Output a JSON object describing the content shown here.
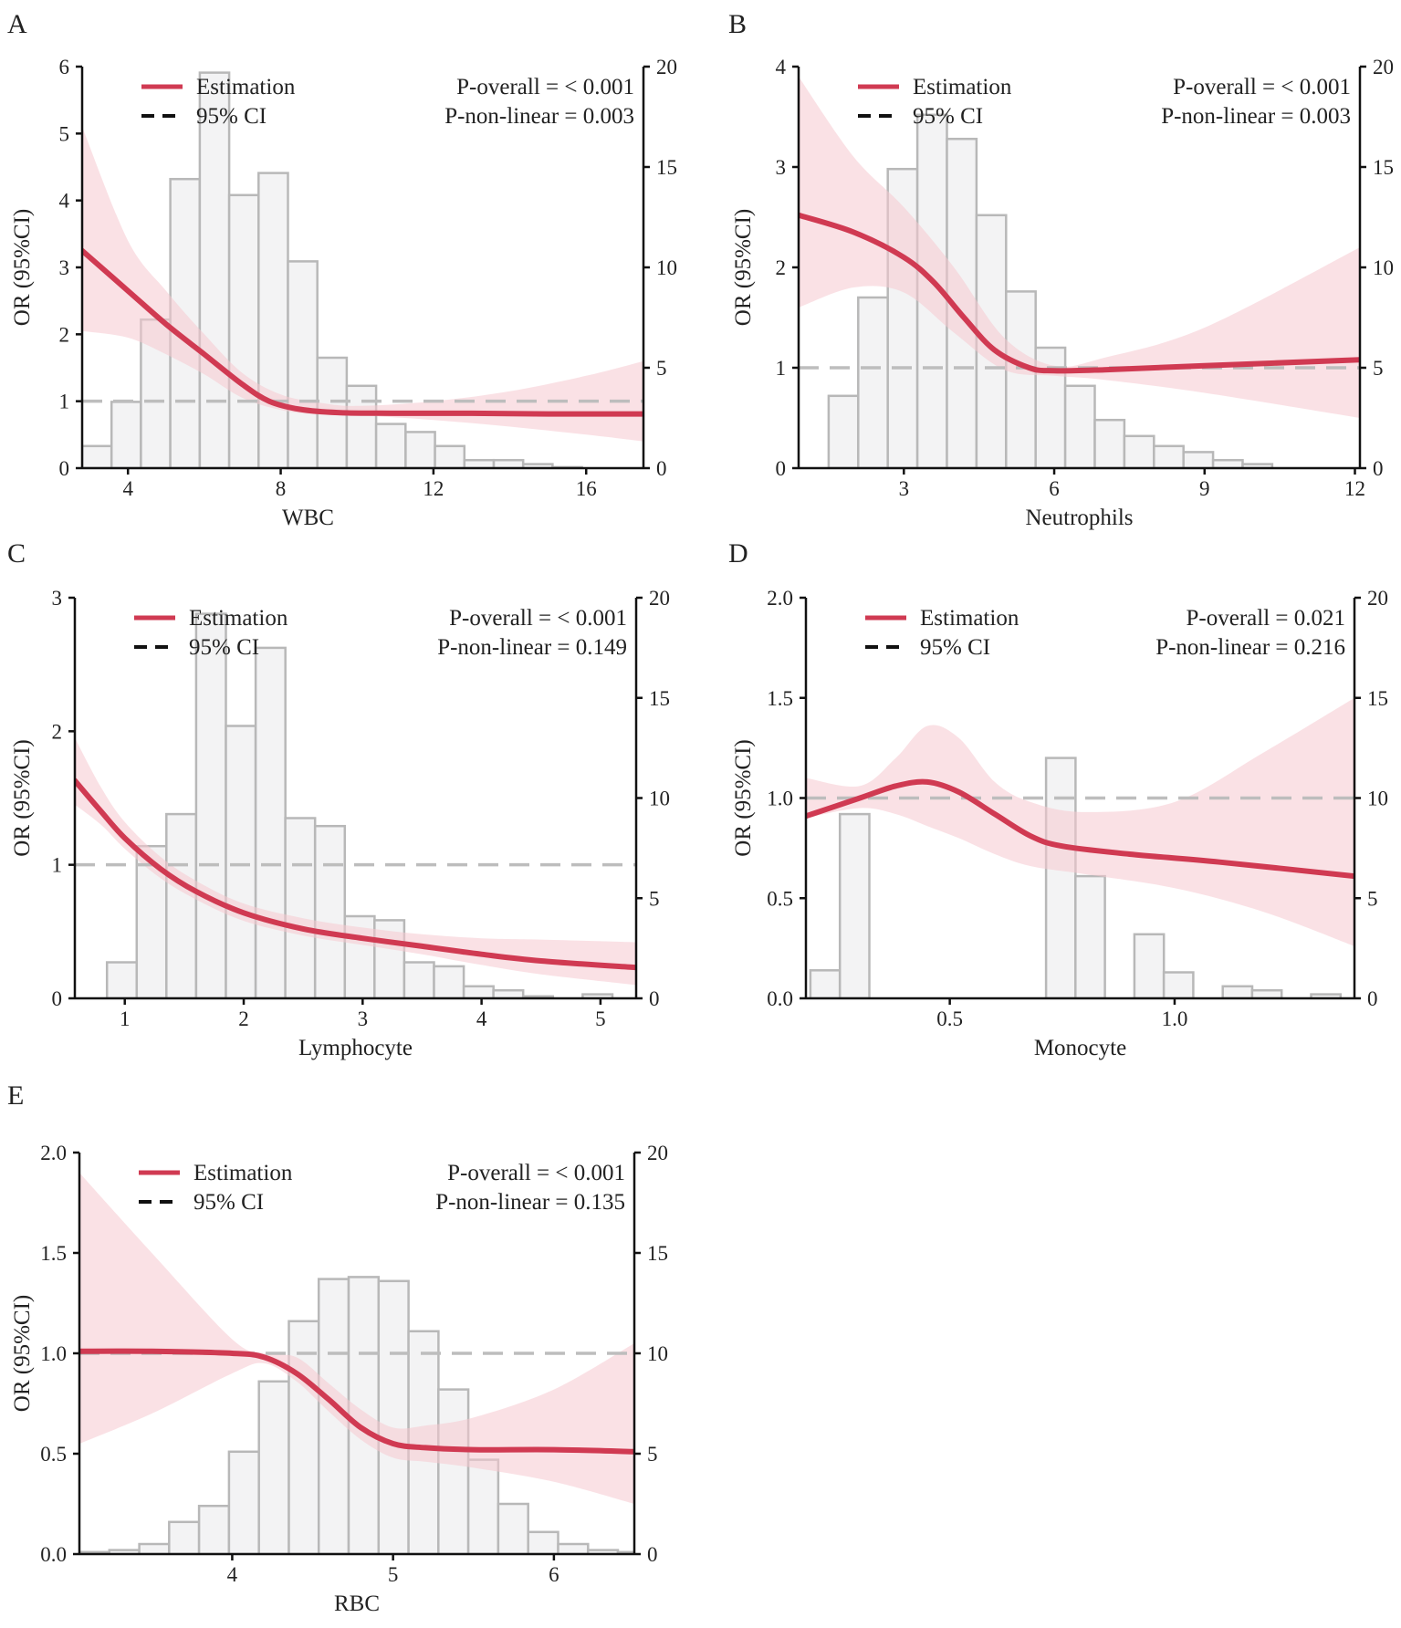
{
  "colors": {
    "estimation": "#d03a52",
    "ci_fill": "#f5c8cf",
    "hist_fill": "#f3f3f4",
    "hist_stroke": "#b8b8b8",
    "reference": "#bdbdbd",
    "axis": "#111111"
  },
  "chart_data": [
    {
      "panel": "A",
      "type": "line",
      "xlabel": "WBC",
      "ylabel": "OR (95%CI)",
      "legend": {
        "estimation": "Estimation",
        "ci": "95% CI"
      },
      "p_overall": "P-overall = < 0.001",
      "p_nonlinear": "P-non-linear = 0.003",
      "xlim": [
        2.8,
        17.5
      ],
      "ylim": [
        0,
        6
      ],
      "y2lim": [
        0,
        20
      ],
      "xticks": [
        4,
        8,
        12,
        16
      ],
      "xticklabels": [
        "4",
        "8",
        "12",
        "16"
      ],
      "yticks": [
        0,
        1,
        2,
        3,
        4,
        5,
        6
      ],
      "yticklabels": [
        "0",
        "1",
        "2",
        "3",
        "4",
        "5",
        "6"
      ],
      "y2ticks": [
        0,
        5,
        10,
        15,
        20
      ],
      "y2ticklabels": [
        "0",
        "5",
        "10",
        "15",
        "20"
      ],
      "reference": 1,
      "hist": {
        "start": 2.8,
        "width": 0.77,
        "counts": [
          1.1,
          3.3,
          7.4,
          14.4,
          19.7,
          13.6,
          14.7,
          10.3,
          5.5,
          4.1,
          2.2,
          1.8,
          1.1,
          0.4,
          0.4,
          0.2,
          0.05,
          0,
          0
        ]
      },
      "estimate": {
        "x": [
          2.8,
          4,
          5,
          6,
          7,
          7.7,
          8.5,
          9.5,
          11,
          13,
          15,
          17.5
        ],
        "y": [
          3.25,
          2.65,
          2.15,
          1.7,
          1.25,
          1.0,
          0.88,
          0.83,
          0.82,
          0.82,
          0.81,
          0.81
        ]
      },
      "ci": {
        "x": [
          2.8,
          4,
          5,
          6,
          7,
          8,
          9,
          10,
          12,
          14,
          16,
          17.5
        ],
        "lower": [
          2.05,
          1.95,
          1.7,
          1.4,
          1.05,
          0.87,
          0.8,
          0.79,
          0.72,
          0.62,
          0.5,
          0.4
        ],
        "upper": [
          5.1,
          3.4,
          2.65,
          2.0,
          1.42,
          1.1,
          0.98,
          0.93,
          1.0,
          1.15,
          1.38,
          1.6
        ]
      }
    },
    {
      "panel": "B",
      "type": "line",
      "xlabel": "Neutrophils",
      "ylabel": "OR (95%CI)",
      "legend": {
        "estimation": "Estimation",
        "ci": "95% CI"
      },
      "p_overall": "P-overall = < 0.001",
      "p_nonlinear": "P-non-linear = 0.003",
      "xlim": [
        0.9,
        12.1
      ],
      "ylim": [
        0,
        4
      ],
      "y2lim": [
        0,
        20
      ],
      "xticks": [
        3,
        6,
        9,
        12
      ],
      "xticklabels": [
        "3",
        "6",
        "9",
        "12"
      ],
      "yticks": [
        0,
        1,
        2,
        3,
        4
      ],
      "yticklabels": [
        "0",
        "1",
        "2",
        "3",
        "4"
      ],
      "y2ticks": [
        0,
        5,
        10,
        15,
        20
      ],
      "y2ticklabels": [
        "0",
        "5",
        "10",
        "15",
        "20"
      ],
      "reference": 1,
      "hist": {
        "start": 1.5,
        "width": 0.59,
        "counts": [
          3.6,
          8.5,
          14.9,
          17.6,
          16.4,
          12.6,
          8.8,
          6.0,
          4.1,
          2.4,
          1.6,
          1.1,
          0.8,
          0.4,
          0.2,
          0,
          0,
          0
        ]
      },
      "estimate": {
        "x": [
          0.9,
          2,
          3,
          3.6,
          4.2,
          4.8,
          5.5,
          6,
          7,
          9,
          12.1
        ],
        "y": [
          2.52,
          2.35,
          2.1,
          1.85,
          1.5,
          1.18,
          1.0,
          0.97,
          0.98,
          1.02,
          1.08
        ]
      },
      "ci": {
        "x": [
          0.9,
          2,
          3,
          4,
          5,
          6,
          7,
          9,
          12.1
        ],
        "lower": [
          1.6,
          1.8,
          1.75,
          1.35,
          0.98,
          0.92,
          0.88,
          0.75,
          0.5
        ],
        "upper": [
          3.9,
          3.1,
          2.6,
          2.0,
          1.3,
          1.02,
          1.1,
          1.4,
          2.2
        ]
      }
    },
    {
      "panel": "C",
      "type": "line",
      "xlabel": "Lymphocyte",
      "ylabel": "OR (95%CI)",
      "legend": {
        "estimation": "Estimation",
        "ci": "95% CI"
      },
      "p_overall": "P-overall = < 0.001",
      "p_nonlinear": "P-non-linear = 0.149",
      "xlim": [
        0.58,
        5.3
      ],
      "ylim": [
        0,
        3
      ],
      "y2lim": [
        0,
        20
      ],
      "xticks": [
        1,
        2,
        3,
        4,
        5
      ],
      "xticklabels": [
        "1",
        "2",
        "3",
        "4",
        "5"
      ],
      "yticks": [
        0,
        1,
        2,
        3
      ],
      "yticklabels": [
        "0",
        "1",
        "2",
        "3"
      ],
      "y2ticks": [
        0,
        5,
        10,
        15,
        20
      ],
      "y2ticklabels": [
        "0",
        "5",
        "10",
        "15",
        "20"
      ],
      "reference": 1,
      "hist": {
        "start": 0.85,
        "width": 0.25,
        "counts": [
          1.8,
          7.6,
          9.2,
          19.2,
          13.6,
          17.5,
          9.0,
          8.6,
          4.1,
          3.9,
          1.8,
          1.6,
          0.6,
          0.4,
          0.1,
          0,
          0.2,
          0,
          0
        ]
      },
      "estimate": {
        "x": [
          0.58,
          0.8,
          1.0,
          1.3,
          1.6,
          2.0,
          2.5,
          3,
          3.5,
          4,
          4.5,
          5.3
        ],
        "y": [
          1.63,
          1.4,
          1.2,
          0.97,
          0.8,
          0.64,
          0.52,
          0.45,
          0.39,
          0.33,
          0.28,
          0.23
        ]
      },
      "ci": {
        "x": [
          0.58,
          0.8,
          1.0,
          1.3,
          1.6,
          2.0,
          2.5,
          3,
          3.5,
          4,
          4.5,
          5.3
        ],
        "lower": [
          1.45,
          1.3,
          1.12,
          0.9,
          0.74,
          0.58,
          0.47,
          0.4,
          0.33,
          0.25,
          0.18,
          0.1
        ],
        "upper": [
          1.95,
          1.58,
          1.32,
          1.06,
          0.88,
          0.71,
          0.6,
          0.53,
          0.48,
          0.45,
          0.44,
          0.42
        ]
      }
    },
    {
      "panel": "D",
      "type": "line",
      "xlabel": "Monocyte",
      "ylabel": "OR (95%CI)",
      "legend": {
        "estimation": "Estimation",
        "ci": "95% CI"
      },
      "p_overall": "P-overall = 0.021",
      "p_nonlinear": "P-non-linear = 0.216",
      "xlim": [
        0.18,
        1.4
      ],
      "ylim": [
        0,
        2
      ],
      "y2lim": [
        0,
        20
      ],
      "xticks": [
        0.5,
        1.0
      ],
      "xticklabels": [
        "0.5",
        "1.0"
      ],
      "yticks": [
        0,
        0.5,
        1,
        1.5,
        2
      ],
      "yticklabels": [
        "0.0",
        "0.5",
        "1.0",
        "1.5",
        "2.0"
      ],
      "y2ticks": [
        0,
        5,
        10,
        15,
        20
      ],
      "y2ticklabels": [
        "0",
        "5",
        "10",
        "15",
        "20"
      ],
      "reference": 1,
      "hist": {
        "start": 0.19,
        "width": 0.0655,
        "counts": [
          1.4,
          9.2,
          0,
          0,
          0,
          0,
          0,
          0,
          12.0,
          6.1,
          0,
          3.2,
          1.3,
          0,
          0.6,
          0.4,
          0,
          0.2
        ]
      },
      "estimate": {
        "x": [
          0.18,
          0.3,
          0.38,
          0.45,
          0.52,
          0.6,
          0.68,
          0.75,
          0.9,
          1.1,
          1.4
        ],
        "y": [
          0.91,
          1.0,
          1.06,
          1.08,
          1.03,
          0.92,
          0.81,
          0.76,
          0.72,
          0.68,
          0.61
        ]
      },
      "ci": {
        "x": [
          0.18,
          0.3,
          0.38,
          0.45,
          0.52,
          0.6,
          0.68,
          0.8,
          1.0,
          1.2,
          1.4
        ],
        "lower": [
          0.9,
          0.95,
          0.92,
          0.86,
          0.8,
          0.72,
          0.66,
          0.62,
          0.55,
          0.43,
          0.26
        ],
        "upper": [
          1.1,
          1.06,
          1.2,
          1.36,
          1.3,
          1.08,
          0.98,
          0.93,
          0.98,
          1.23,
          1.5
        ]
      }
    },
    {
      "panel": "E",
      "type": "line",
      "xlabel": "RBC",
      "ylabel": "OR (95%CI)",
      "legend": {
        "estimation": "Estimation",
        "ci": "95% CI"
      },
      "p_overall": "P-overall = < 0.001",
      "p_nonlinear": "P-non-linear = 0.135",
      "xlim": [
        3.05,
        6.5
      ],
      "ylim": [
        0,
        2
      ],
      "y2lim": [
        0,
        20
      ],
      "xticks": [
        4,
        5,
        6
      ],
      "xticklabels": [
        "4",
        "5",
        "6"
      ],
      "yticks": [
        0,
        0.5,
        1,
        1.5,
        2
      ],
      "yticklabels": [
        "0.0",
        "0.5",
        "1.0",
        "1.5",
        "2.0"
      ],
      "y2ticks": [
        0,
        5,
        10,
        15,
        20
      ],
      "y2ticklabels": [
        "0",
        "5",
        "10",
        "15",
        "20"
      ],
      "reference": 1,
      "hist": {
        "start": 3.05,
        "width": 0.186,
        "counts": [
          0.1,
          0.2,
          0.5,
          1.6,
          2.4,
          5.1,
          8.6,
          11.6,
          13.7,
          13.8,
          13.6,
          11.1,
          8.2,
          4.7,
          2.5,
          1.1,
          0.5,
          0.2,
          0.1
        ]
      },
      "estimate": {
        "x": [
          3.05,
          3.5,
          4.0,
          4.2,
          4.4,
          4.6,
          4.8,
          5.0,
          5.2,
          5.5,
          6.0,
          6.5
        ],
        "y": [
          1.01,
          1.01,
          1.0,
          0.98,
          0.9,
          0.77,
          0.63,
          0.55,
          0.53,
          0.52,
          0.52,
          0.51
        ]
      },
      "ci": {
        "x": [
          3.05,
          3.5,
          4.0,
          4.2,
          4.4,
          4.6,
          4.8,
          5.0,
          5.2,
          5.5,
          6.0,
          6.5
        ],
        "lower": [
          0.55,
          0.7,
          0.9,
          0.95,
          0.86,
          0.71,
          0.57,
          0.48,
          0.46,
          0.43,
          0.36,
          0.25
        ],
        "upper": [
          1.9,
          1.5,
          1.07,
          1.0,
          0.98,
          0.85,
          0.72,
          0.63,
          0.64,
          0.68,
          0.82,
          1.05
        ]
      }
    }
  ]
}
